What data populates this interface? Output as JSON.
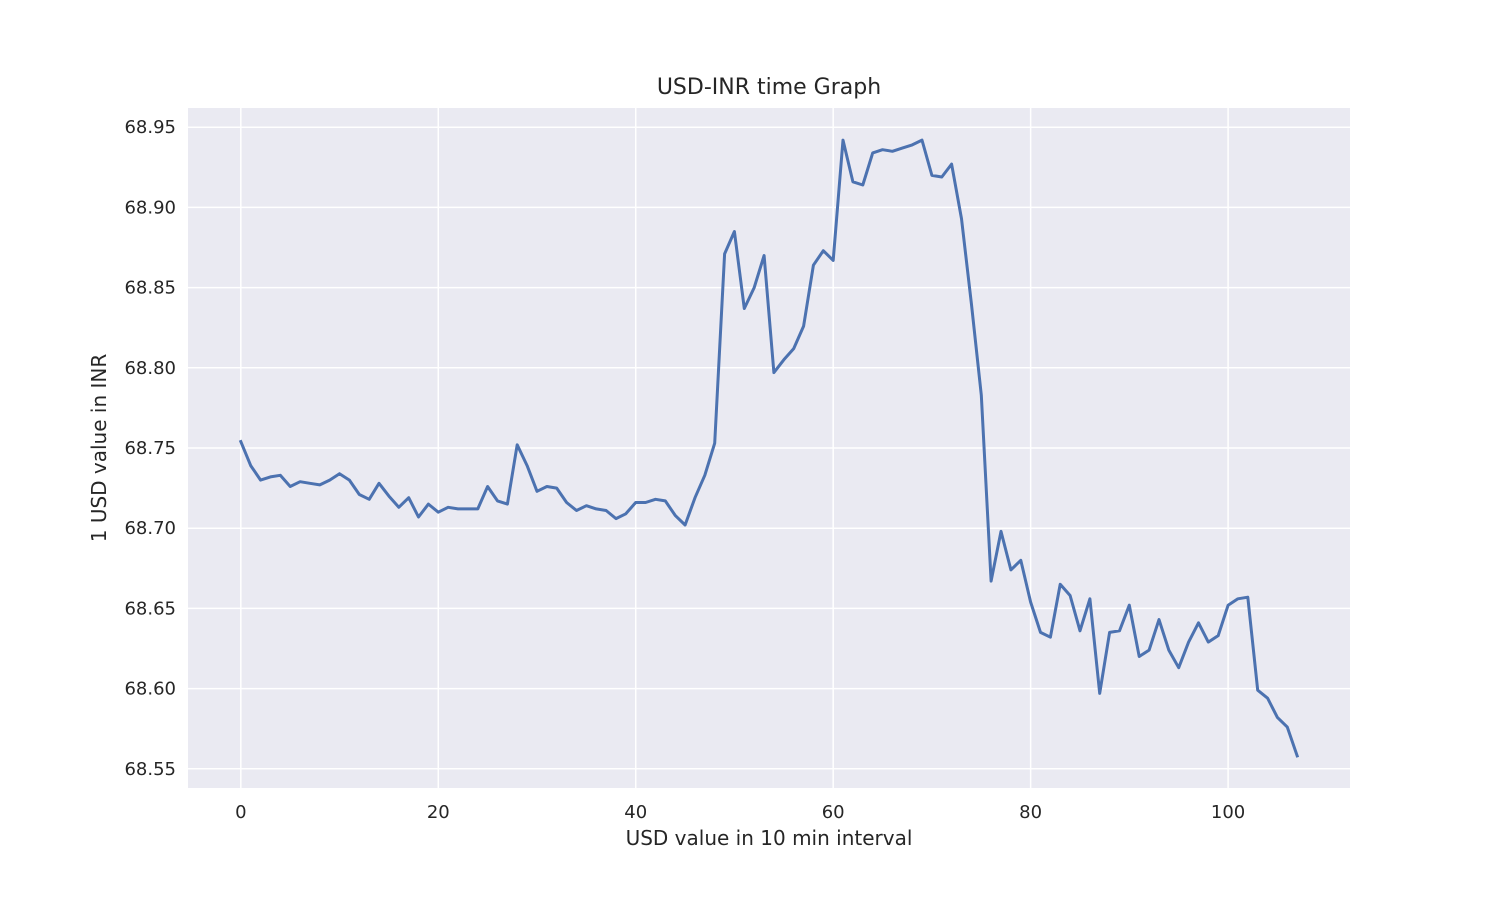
{
  "chart_data": {
    "type": "line",
    "title": "USD-INR time Graph",
    "xlabel": "USD value in 10 min interval",
    "ylabel": "1 USD value in INR",
    "xlim": [
      -5.35,
      112.35
    ],
    "ylim": [
      68.538,
      68.962
    ],
    "x_ticks": [
      0,
      20,
      40,
      60,
      80,
      100
    ],
    "x_tick_labels": [
      "0",
      "20",
      "40",
      "60",
      "80",
      "100"
    ],
    "y_ticks": [
      68.55,
      68.6,
      68.65,
      68.7,
      68.75,
      68.8,
      68.85,
      68.9,
      68.95
    ],
    "y_tick_labels": [
      "68.55",
      "68.60",
      "68.65",
      "68.70",
      "68.75",
      "68.80",
      "68.85",
      "68.90",
      "68.95"
    ],
    "grid": true,
    "background": "#eaeaf2",
    "grid_color": "#ffffff",
    "series": [
      {
        "color": "#4c72b0",
        "x": [
          0,
          1,
          2,
          3,
          4,
          5,
          6,
          7,
          8,
          9,
          10,
          11,
          12,
          13,
          14,
          15,
          16,
          17,
          18,
          19,
          20,
          21,
          22,
          23,
          24,
          25,
          26,
          27,
          28,
          29,
          30,
          31,
          32,
          33,
          34,
          35,
          36,
          37,
          38,
          39,
          40,
          41,
          42,
          43,
          44,
          45,
          46,
          47,
          48,
          49,
          50,
          51,
          52,
          53,
          54,
          55,
          56,
          57,
          58,
          59,
          60,
          61,
          62,
          63,
          64,
          65,
          66,
          67,
          68,
          69,
          70,
          71,
          72,
          73,
          74,
          75,
          76,
          77,
          78,
          79,
          80,
          81,
          82,
          83,
          84,
          85,
          86,
          87,
          88,
          89,
          90,
          91,
          92,
          93,
          94,
          95,
          96,
          97,
          98,
          99,
          100,
          101,
          102,
          103,
          104,
          105,
          106,
          107
        ],
        "values": [
          68.754,
          68.739,
          68.73,
          68.732,
          68.733,
          68.726,
          68.729,
          68.728,
          68.727,
          68.73,
          68.734,
          68.73,
          68.721,
          68.718,
          68.728,
          68.72,
          68.713,
          68.719,
          68.707,
          68.715,
          68.71,
          68.713,
          68.712,
          68.712,
          68.712,
          68.726,
          68.717,
          68.715,
          68.752,
          68.739,
          68.723,
          68.726,
          68.725,
          68.716,
          68.711,
          68.714,
          68.712,
          68.711,
          68.706,
          68.709,
          68.716,
          68.716,
          68.718,
          68.717,
          68.708,
          68.702,
          68.719,
          68.733,
          68.753,
          68.871,
          68.885,
          68.837,
          68.85,
          68.87,
          68.797,
          68.805,
          68.812,
          68.826,
          68.864,
          68.873,
          68.867,
          68.942,
          68.916,
          68.914,
          68.934,
          68.936,
          68.935,
          68.937,
          68.939,
          68.942,
          68.92,
          68.919,
          68.927,
          68.893,
          68.84,
          68.783,
          68.667,
          68.698,
          68.674,
          68.68,
          68.654,
          68.635,
          68.632,
          68.665,
          68.658,
          68.636,
          68.656,
          68.597,
          68.635,
          68.636,
          68.652,
          68.62,
          68.624,
          68.643,
          68.624,
          68.613,
          68.629,
          68.641,
          68.629,
          68.633,
          68.652,
          68.656,
          68.657,
          68.599,
          68.594,
          68.582,
          68.576,
          68.558
        ]
      }
    ]
  }
}
